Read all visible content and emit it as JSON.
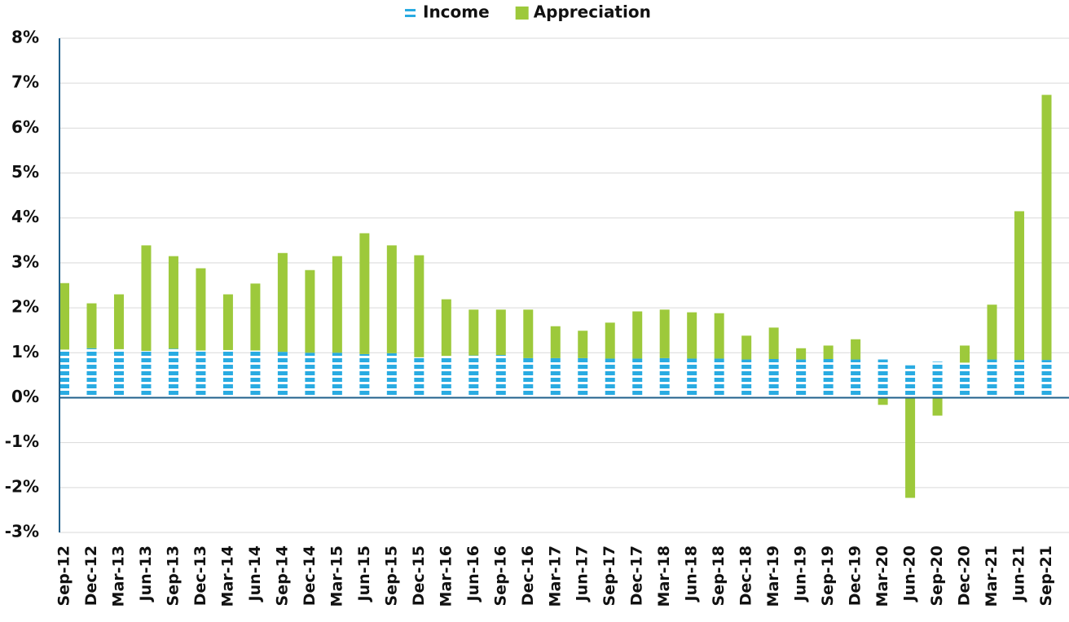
{
  "chart_data": {
    "type": "stacked_bar",
    "categories": [
      "Sep-12",
      "Dec-12",
      "Mar-13",
      "Jun-13",
      "Sep-13",
      "Dec-13",
      "Mar-14",
      "Jun-14",
      "Sep-14",
      "Dec-14",
      "Mar-15",
      "Jun-15",
      "Sep-15",
      "Dec-15",
      "Mar-16",
      "Jun-16",
      "Sep-16",
      "Dec-16",
      "Mar-17",
      "Jun-17",
      "Sep-17",
      "Dec-17",
      "Mar-18",
      "Jun-18",
      "Sep-18",
      "Dec-18",
      "Mar-19",
      "Jun-19",
      "Sep-19",
      "Dec-19",
      "Mar-20",
      "Jun-20",
      "Sep-20",
      "Dec-20",
      "Mar-21",
      "Jun-21",
      "Sep-21"
    ],
    "series": [
      {
        "name": "Income",
        "color": "#29abe2",
        "pattern": "stripes",
        "values": [
          1.07,
          1.1,
          1.08,
          1.04,
          1.09,
          1.05,
          1.06,
          1.05,
          1.02,
          1.0,
          1.0,
          0.97,
          0.99,
          0.9,
          0.93,
          0.94,
          0.95,
          0.88,
          0.88,
          0.88,
          0.87,
          0.87,
          0.88,
          0.87,
          0.87,
          0.85,
          0.86,
          0.85,
          0.86,
          0.85,
          0.85,
          0.72,
          0.8,
          0.78,
          0.85,
          0.84,
          0.84
        ]
      },
      {
        "name": "Appreciation",
        "color": "#9dc93b",
        "values": [
          1.48,
          1.0,
          1.22,
          2.35,
          2.06,
          1.83,
          1.24,
          1.49,
          2.2,
          1.84,
          2.15,
          2.69,
          2.4,
          2.27,
          1.26,
          1.02,
          1.01,
          1.08,
          0.71,
          0.61,
          0.8,
          1.05,
          1.08,
          1.03,
          1.01,
          0.53,
          0.7,
          0.25,
          0.3,
          0.45,
          -0.16,
          -2.23,
          -0.4,
          0.38,
          1.22,
          3.31,
          5.9
        ]
      }
    ],
    "ylim": [
      -3,
      8
    ],
    "yticks": [
      {
        "value": -3,
        "label": "-3%"
      },
      {
        "value": -2,
        "label": "-2%"
      },
      {
        "value": -1,
        "label": "-1%"
      },
      {
        "value": 0,
        "label": "0%"
      },
      {
        "value": 1,
        "label": "1%"
      },
      {
        "value": 2,
        "label": "2%"
      },
      {
        "value": 3,
        "label": "3%"
      },
      {
        "value": 4,
        "label": "4%"
      },
      {
        "value": 5,
        "label": "5%"
      },
      {
        "value": 6,
        "label": "6%"
      },
      {
        "value": 7,
        "label": "7%"
      },
      {
        "value": 8,
        "label": "8%"
      }
    ],
    "grid": true,
    "legend": "top"
  }
}
